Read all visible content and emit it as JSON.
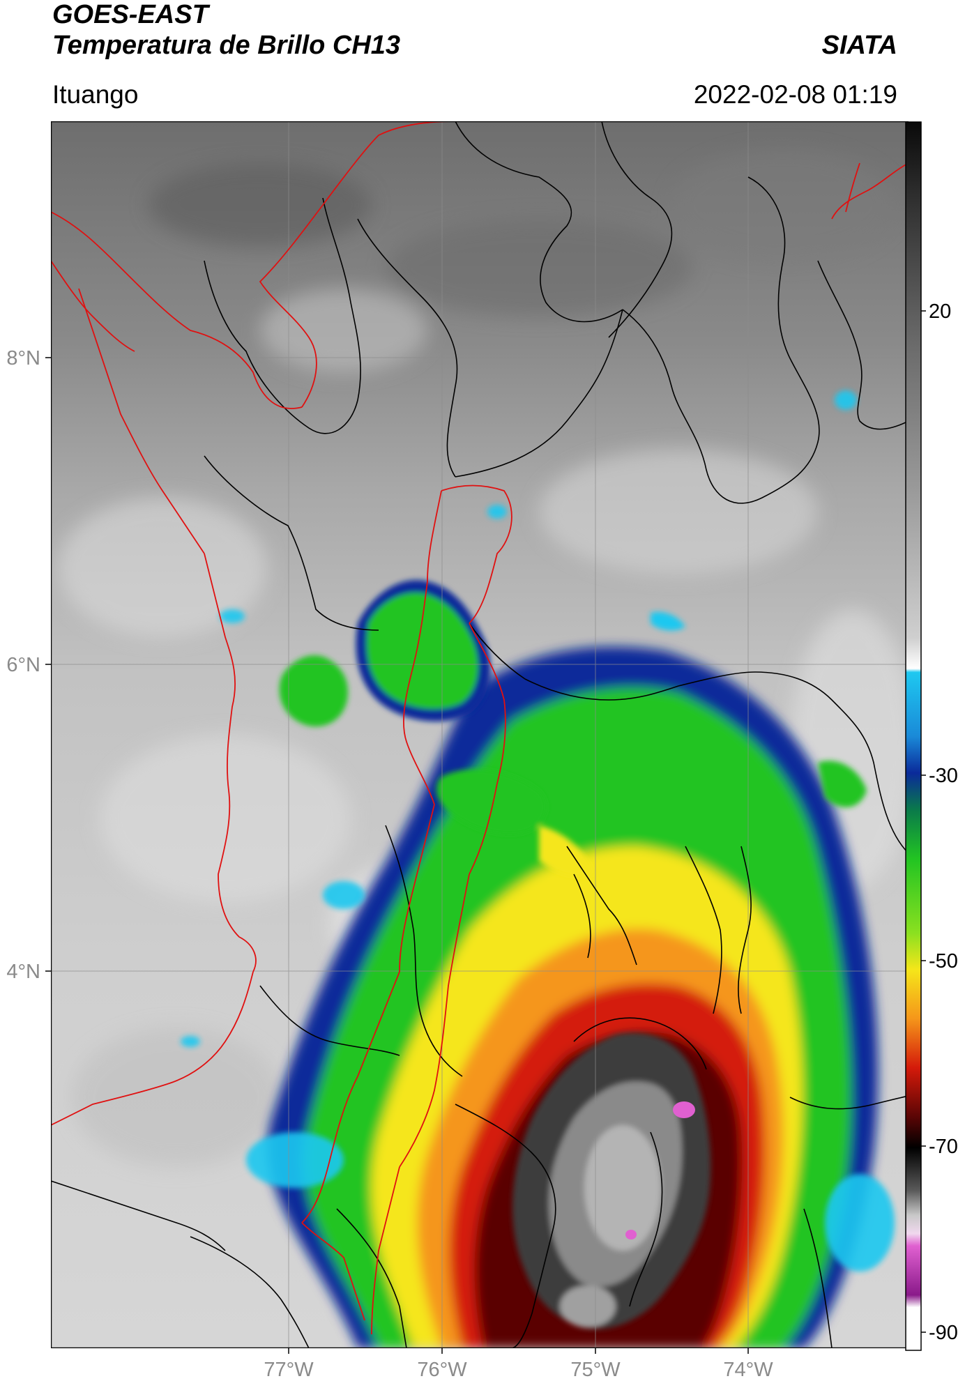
{
  "header": {
    "satellite": "GOES-EAST",
    "product": "Temperatura de Brillo CH13",
    "agency": "SIATA",
    "location": "Ituango",
    "datetime": "2022-02-08 01:19"
  },
  "map": {
    "lon_ticks": [
      "77°W",
      "76°W",
      "75°W",
      "74°W"
    ],
    "lat_ticks": [
      "8°N",
      "6°N",
      "4°N"
    ]
  },
  "colorbar": {
    "ticks": [
      "20",
      "-30",
      "-50",
      "-70",
      "-90"
    ],
    "colors": {
      "warm_gray_dark": "#3a3a3a",
      "warm_gray_light": "#e2e2e2",
      "cyan": "#1ec8f0",
      "blue": "#0a2a9a",
      "green": "#22c422",
      "yellow": "#f5e61a",
      "orange": "#f5961a",
      "red": "#d41a0a",
      "dark_red": "#5a0505",
      "black": "#000000",
      "magenta": "#e060d0",
      "purple": "#8a1a8a",
      "white": "#ffffff"
    }
  }
}
